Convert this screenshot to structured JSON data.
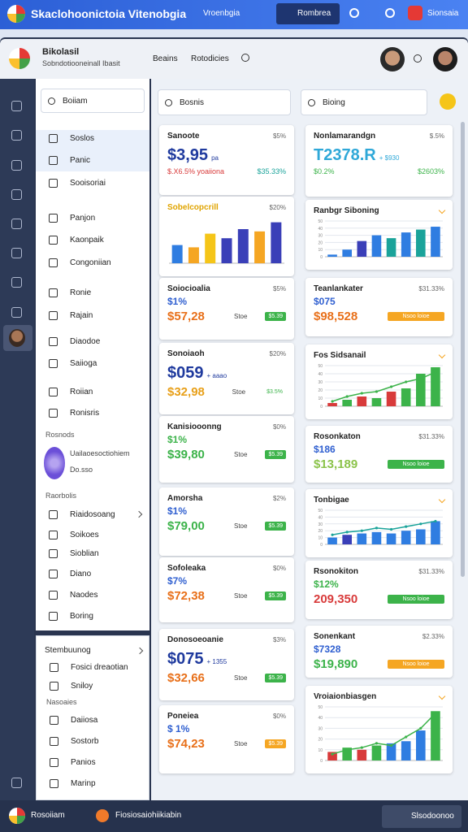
{
  "top_bar": {
    "title": "Skaclohoonictoia Vitenobgia",
    "menu": "Vroenbgia",
    "button": "Rombrea",
    "badge": "Sionsaia"
  },
  "header": {
    "title": "Bikolasil",
    "subtitle": "Sobndotiooneinall Ibasit",
    "nav": [
      "Beains",
      "Rotodicies"
    ]
  },
  "sidebar": {
    "search": "Boiiam",
    "menu": [
      "Soslos",
      "Panic",
      "Sooisoriai",
      "Panjon",
      "Kaonpaik",
      "Congoniian",
      "Ronie",
      "Rajain",
      "Diaodoe",
      "Saiioga",
      "Roiian",
      "Ronisris"
    ],
    "recent": {
      "title": "Rosnods",
      "name": "Uailaoesoctiohiem",
      "sub": "Do.sso"
    },
    "reports": {
      "title": "Raorbolis",
      "items": [
        "Riaidosoang",
        "Soikoes",
        "Sioblian",
        "Diano",
        "Naodes",
        "Boring"
      ]
    },
    "panel": {
      "title": "Stembuunog",
      "items": [
        "Fosici dreaotian",
        "Sniloy"
      ]
    },
    "more": {
      "title": "Nasoaies",
      "items": [
        "Daiiosa",
        "Sostorb",
        "Panios",
        "Marinp"
      ]
    }
  },
  "main": {
    "search_left": "Bosnis",
    "search_right": "Bioing",
    "left_cards": [
      {
        "title": "Sanoote",
        "pct": "$5%",
        "value": "$3,95",
        "value_note": "pa",
        "value_color": "#1f3a9e",
        "change": "$.X6.5% yoaiiona",
        "change_color": "#d83a3a",
        "change2": "$35.33%",
        "change2_color": "#1aa39a"
      },
      {
        "title": "Sobelcopcrill",
        "pct": "$20%",
        "title_color": "#e0a400",
        "ylim": [
          0,
          40
        ],
        "values": [
          16,
          14,
          26,
          22,
          30,
          28,
          36
        ],
        "colors": [
          "#2f7de1",
          "#f5a623",
          "#f5c518",
          "#3a3fb8",
          "#3a3fb8",
          "#f5a623",
          "#3a3fb8"
        ]
      },
      {
        "title": "Soiocioalia",
        "pct": "$5%",
        "small": "$1%",
        "small_color": "#2f5fd0",
        "amount": "$57,28",
        "amount_color": "#e8701a",
        "tag": "Stoe",
        "badge": "$5.39",
        "badge_color": "#3cb34a"
      },
      {
        "title": "Sonoiaoh",
        "pct": "$20%",
        "value": "$059",
        "value_note": "+ aaao",
        "value_color": "#1f3a9e",
        "amount": "$32,98",
        "amount_color": "#e8a01a",
        "tag": "Stoe",
        "badge": "$3.5%",
        "badge_color": "#ffffff"
      },
      {
        "title": "Kanisiooonng",
        "pct": "$0%",
        "small": "$1%",
        "small_color": "#3cb34a",
        "amount": "$39,80",
        "amount_color": "#3cb34a",
        "tag": "Stoe",
        "badge": "$5.39",
        "badge_color": "#3cb34a"
      },
      {
        "title": "Amorsha",
        "pct": "$2%",
        "small": "$1%",
        "small_color": "#2f5fd0",
        "amount": "$79,00",
        "amount_color": "#3cb34a",
        "tag": "Stoe",
        "badge": "$5.39",
        "badge_color": "#3cb34a"
      },
      {
        "title": "Sofoleaka",
        "pct": "$0%",
        "small": "$7%",
        "small_color": "#2f5fd0",
        "amount": "$72,38",
        "amount_color": "#e8701a",
        "tag": "Stoe",
        "badge": "$5.39",
        "badge_color": "#3cb34a"
      },
      {
        "title": "Donosoeoanie",
        "pct": "$3%",
        "value": "$075",
        "value_note": "+ 1355",
        "value_color": "#1f3a9e",
        "amount": "$32,66",
        "amount_color": "#e8701a",
        "tag": "Stoe",
        "badge": "$5.39",
        "badge_color": "#3cb34a"
      },
      {
        "title": "Poneiea",
        "pct": "$0%",
        "small": "$ 1%",
        "small_color": "#2f5fd0",
        "amount": "$74,23",
        "amount_color": "#e8701a",
        "tag": "Stoe",
        "badge": "$5.39",
        "badge_color": "#f5a623"
      }
    ],
    "right_cards": [
      {
        "title": "Nonlamarandgn",
        "pct": "$.5%",
        "value": "T2378.R",
        "value_note": "+ $930",
        "value_color": "#2fa8d8",
        "change": "$0.2%",
        "change_color": "#3cb34a",
        "change2": "$2603%",
        "change2_color": "#3cb34a"
      },
      {
        "title": "Ranbgr Siboning",
        "ylim": [
          0,
          50
        ],
        "yticks": [
          0,
          10,
          20,
          30,
          40,
          50
        ],
        "values": [
          3,
          10,
          22,
          30,
          26,
          34,
          38,
          42
        ],
        "colors": [
          "#2f7de1",
          "#2f7de1",
          "#3a3fb8",
          "#2f7de1",
          "#1aa39a",
          "#2f7de1",
          "#1aa39a",
          "#2f7de1"
        ]
      },
      {
        "title": "Teanlankater",
        "pct": "$31.33%",
        "small": "$075",
        "small_color": "#2f5fd0",
        "amount": "$98,528",
        "amount_color": "#e8701a",
        "badge": "Nsoo loioe",
        "badge_color": "#f5a623"
      },
      {
        "title": "Fos Sidsanail",
        "ylim": [
          0,
          50
        ],
        "yticks": [
          0,
          10,
          20,
          30,
          40,
          50
        ],
        "values": [
          4,
          8,
          12,
          10,
          18,
          22,
          40,
          48
        ],
        "colors": [
          "#d83a3a",
          "#3cb34a",
          "#d83a3a",
          "#3cb34a",
          "#d83a3a",
          "#3cb34a",
          "#3cb34a",
          "#3cb34a"
        ],
        "line": [
          6,
          12,
          16,
          18,
          24,
          30,
          34,
          42
        ],
        "line_color": "#3cb34a"
      },
      {
        "title": "Rosonkaton",
        "pct": "$31.33%",
        "small": "$186",
        "small_color": "#2f5fd0",
        "amount": "$13,189",
        "amount_color": "#8bc34a",
        "badge": "Nsoo loioe",
        "badge_color": "#3cb34a"
      },
      {
        "title": "Tonbigae",
        "ylim": [
          0,
          50
        ],
        "yticks": [
          0,
          10,
          20,
          30,
          40,
          50
        ],
        "values": [
          10,
          14,
          16,
          18,
          16,
          20,
          22,
          34
        ],
        "colors": [
          "#2f7de1",
          "#3a3fb8",
          "#2f7de1",
          "#2f7de1",
          "#2f7de1",
          "#2f7de1",
          "#2f7de1",
          "#2f7de1"
        ],
        "line": [
          14,
          18,
          20,
          24,
          22,
          26,
          30,
          34
        ],
        "line_color": "#1aa39a"
      },
      {
        "title": "Rsonokiton",
        "pct": "$31.33%",
        "small": "$12%",
        "small_color": "#3cb34a",
        "amount": "209,350",
        "amount_color": "#d83a3a",
        "badge": "Nsoo loioe",
        "badge_color": "#3cb34a"
      },
      {
        "title": "Sonenkant",
        "pct": "$2.33%",
        "small": "$7328",
        "small_color": "#2f5fd0",
        "amount": "$19,890",
        "amount_color": "#3cb34a",
        "badge": "Nsoo loioe",
        "badge_color": "#f5a623"
      },
      {
        "title": "Vroiaionbiasgen",
        "ylim": [
          0,
          50
        ],
        "yticks": [
          0,
          10,
          20,
          30,
          40,
          50
        ],
        "values": [
          8,
          12,
          10,
          14,
          16,
          18,
          28,
          46
        ],
        "colors": [
          "#d83a3a",
          "#3cb34a",
          "#d83a3a",
          "#3cb34a",
          "#2f7de1",
          "#2f7de1",
          "#2f7de1",
          "#3cb34a"
        ],
        "line": [
          6,
          10,
          12,
          16,
          14,
          22,
          30,
          44
        ],
        "line_color": "#3cb34a"
      }
    ]
  },
  "bottom_bar": {
    "menu": "Rosoiiam",
    "title": "Fiosiosaiohiikiabin",
    "button": "Slsodoonoo"
  }
}
